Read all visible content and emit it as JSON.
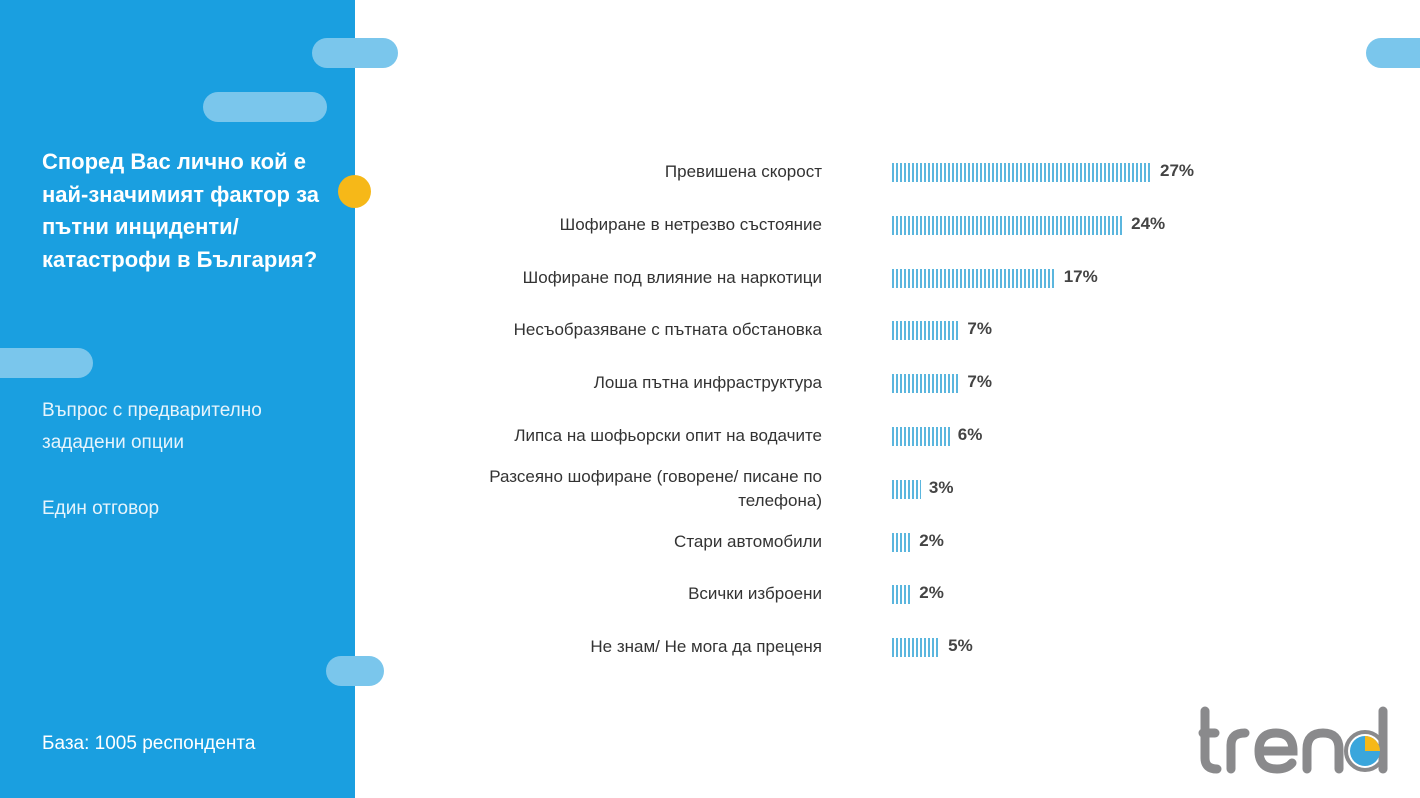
{
  "sidebar": {
    "question": "Според Вас лично кой е най-значимият фактор за пътни инциденти/ катастрофи в България?",
    "note1": "Въпрос с предварително зададени опции",
    "note2": "Един отговор",
    "base": "База:  1005 респондента"
  },
  "logo": {
    "text": "trend"
  },
  "colors": {
    "sidebar": "#1a9fe0",
    "bar": "#5bb6de",
    "accent": "#f6b818"
  },
  "chart_data": {
    "type": "bar",
    "orientation": "horizontal",
    "categories": [
      "Превишена скорост",
      "Шофиране в нетрезво състояние",
      "Шофиране под влияние на наркотици",
      "Несъобразяване с пътната обстановка",
      "Лоша пътна инфраструктура",
      "Липса на шофьорски опит на водачите",
      "Разсеяно шофиране (говорене/ писане по телефона)",
      "Стари автомобили",
      "Всички изброени",
      "Не знам/ Не мога да преценя"
    ],
    "values": [
      27,
      24,
      17,
      7,
      7,
      6,
      3,
      2,
      2,
      5
    ],
    "labels": [
      "27%",
      "24%",
      "17%",
      "7%",
      "7%",
      "6%",
      "3%",
      "2%",
      "2%",
      "5%"
    ],
    "unit": "%"
  }
}
